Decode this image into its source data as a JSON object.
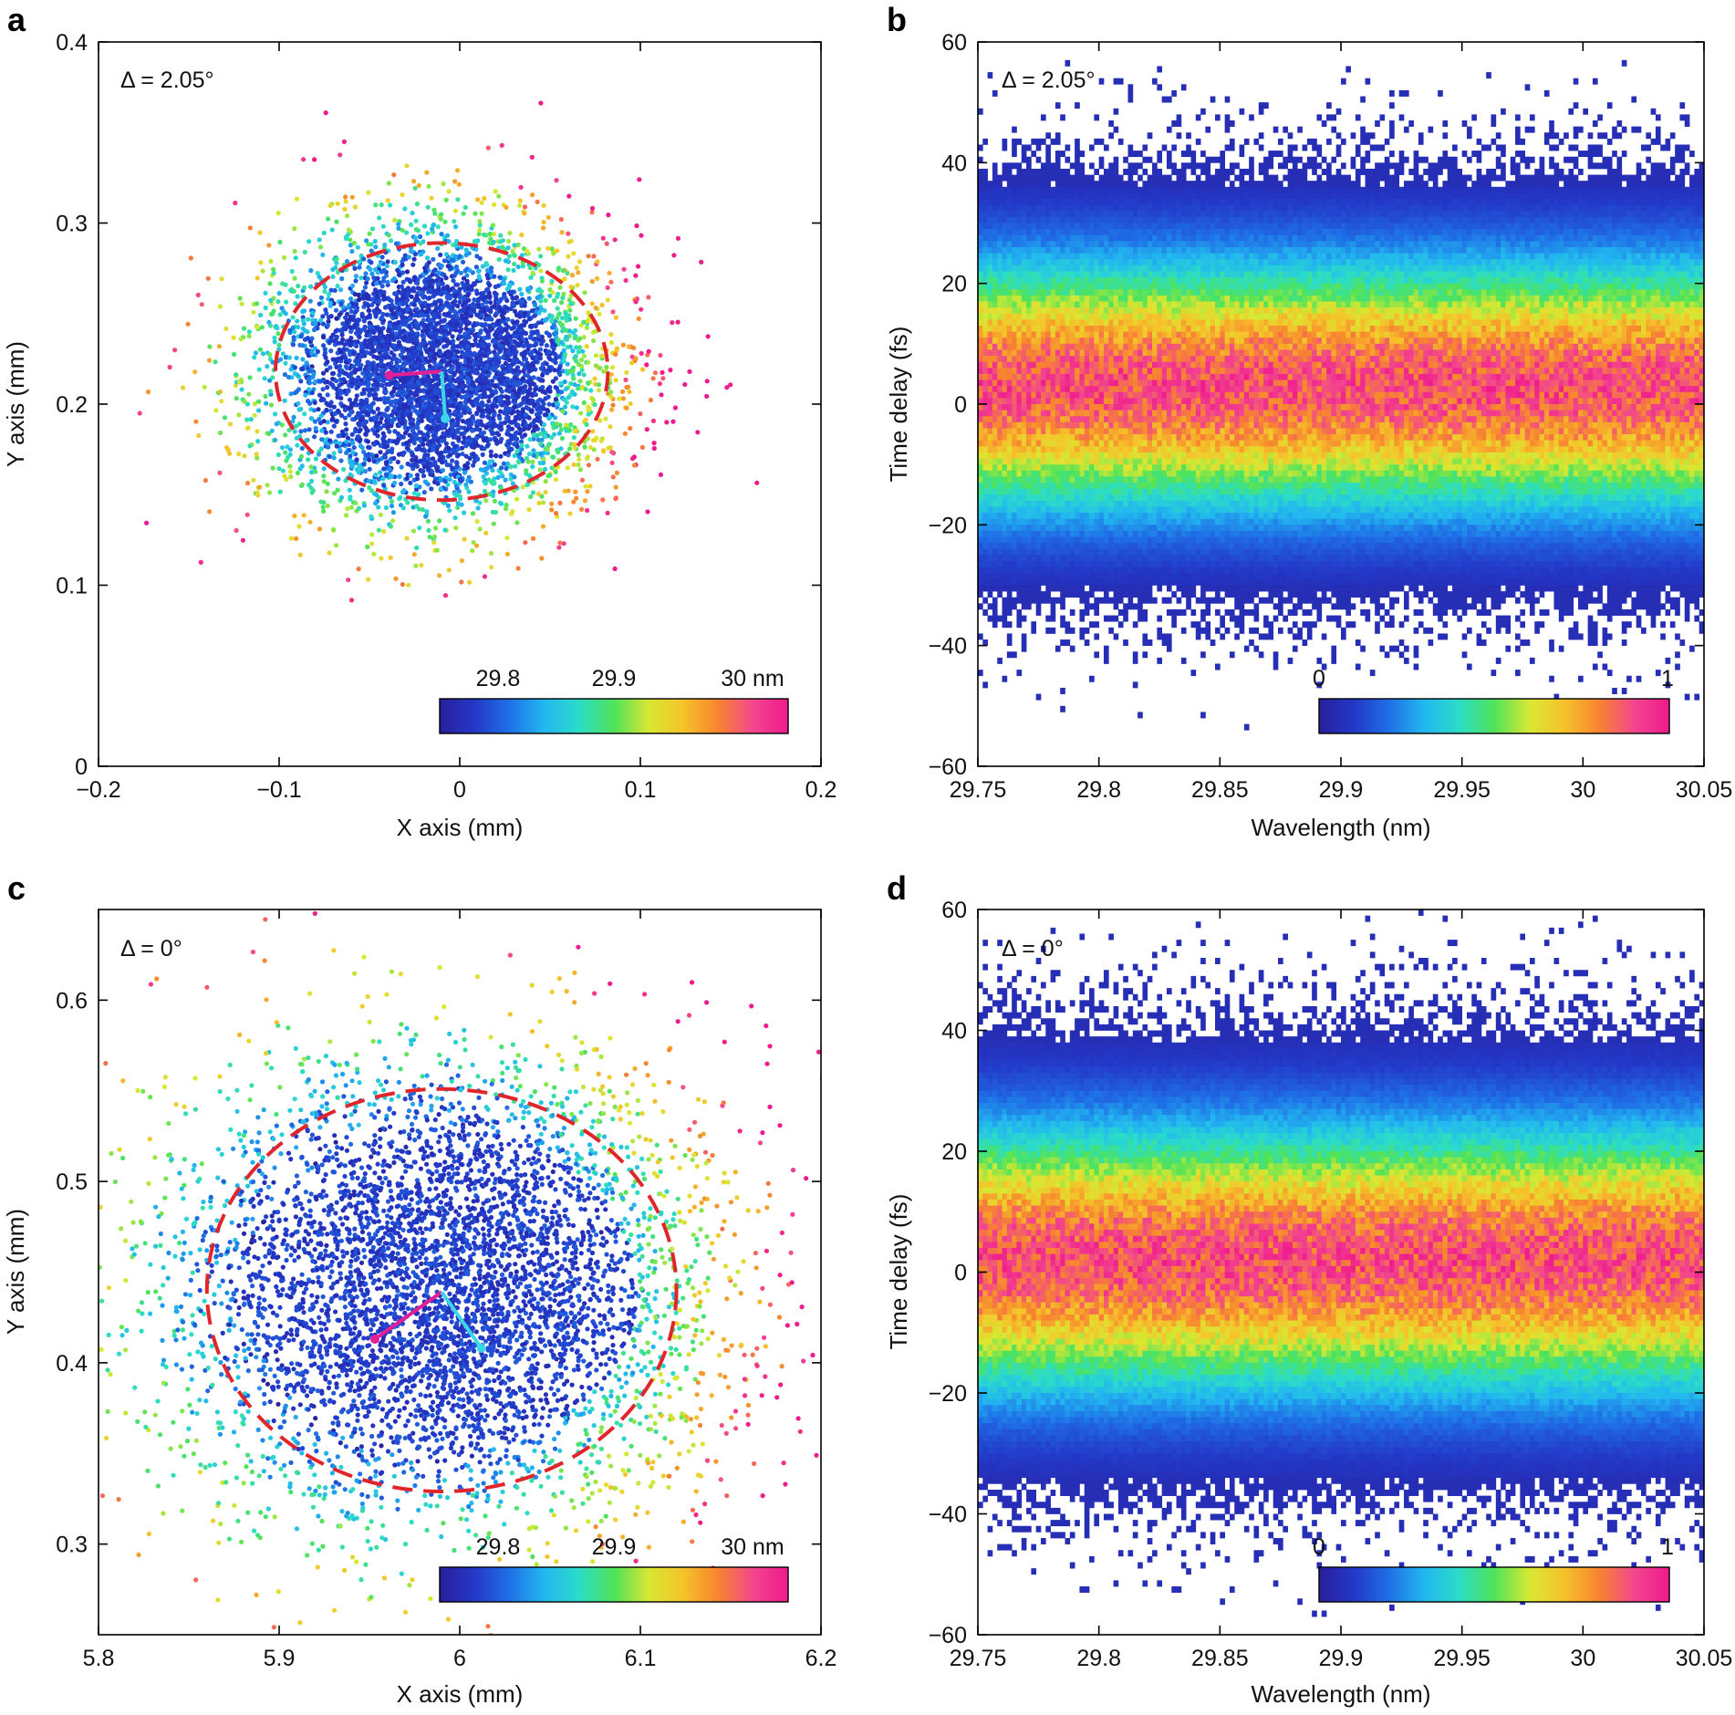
{
  "colormap": [
    "#2a1f9a",
    "#2338c8",
    "#1f6fe6",
    "#22b7f0",
    "#2bdcc8",
    "#4fe35a",
    "#d8e832",
    "#f6c22a",
    "#f7842f",
    "#f2468e",
    "#ef1a8c"
  ],
  "chart_data": [
    {
      "panel": "a",
      "type": "scatter",
      "annotation": "Δ = 2.05°",
      "xlabel": "X axis (mm)",
      "ylabel": "Y axis (mm)",
      "xlim": [
        -0.2,
        0.2
      ],
      "ylim": [
        0,
        0.4
      ],
      "xticks": [
        -0.2,
        -0.1,
        0,
        0.1,
        0.2
      ],
      "xtick_labels": [
        "−0.2",
        "−0.1",
        "0",
        "0.1",
        "0.2"
      ],
      "yticks": [
        0,
        0.1,
        0.2,
        0.3,
        0.4
      ],
      "ytick_labels": [
        "0",
        "0.1",
        "0.2",
        "0.3",
        "0.4"
      ],
      "spot_center": [
        -0.01,
        0.218
      ],
      "spot_radius": [
        0.11,
        0.09
      ],
      "dashed_ellipse": {
        "cx": -0.01,
        "cy": 0.218,
        "rx": 0.092,
        "ry": 0.071
      },
      "centroid_lines": [
        {
          "color": "#e61e96",
          "from": [
            -0.01,
            0.218
          ],
          "to": [
            -0.039,
            0.216
          ]
        },
        {
          "color": "#3ad7e8",
          "from": [
            -0.01,
            0.218
          ],
          "to": [
            -0.008,
            0.192
          ]
        }
      ],
      "colorbar": {
        "tick_labels": [
          "29.8",
          "29.9",
          "30 nm"
        ],
        "tick_values": [
          29.8,
          29.9,
          30.0
        ],
        "range": [
          29.75,
          30.05
        ]
      }
    },
    {
      "panel": "b",
      "type": "heatmap",
      "annotation": "Δ = 2.05°",
      "xlabel": "Wavelength (nm)",
      "ylabel": "Time delay (fs)",
      "xlim": [
        29.75,
        30.05
      ],
      "ylim": [
        -60,
        60
      ],
      "xticks": [
        29.75,
        29.8,
        29.85,
        29.9,
        29.95,
        30,
        30.05
      ],
      "xtick_labels": [
        "29.75",
        "29.8",
        "29.85",
        "29.9",
        "29.95",
        "30",
        "30.05"
      ],
      "yticks": [
        -60,
        -40,
        -20,
        0,
        20,
        40,
        60
      ],
      "ytick_labels": [
        "−60",
        "−40",
        "−20",
        "0",
        "20",
        "40",
        "60"
      ],
      "pulse_center_fs": 3,
      "pulse_sigma_fs": 14,
      "colorbar": {
        "tick_labels": [
          "0",
          "1"
        ],
        "tick_values": [
          0,
          1
        ],
        "range": [
          0,
          1
        ]
      }
    },
    {
      "panel": "c",
      "type": "scatter",
      "annotation": "Δ = 0°",
      "xlabel": "X axis (mm)",
      "ylabel": "Y axis (mm)",
      "xlim": [
        5.8,
        6.2
      ],
      "ylim": [
        0.25,
        0.65
      ],
      "xticks": [
        5.8,
        5.9,
        6.0,
        6.1,
        6.2
      ],
      "xtick_labels": [
        "5.8",
        "5.9",
        "6",
        "6.1",
        "6.2"
      ],
      "yticks": [
        0.3,
        0.4,
        0.5,
        0.6
      ],
      "ytick_labels": [
        "0.3",
        "0.4",
        "0.5",
        "0.6"
      ],
      "spot_center": [
        5.99,
        0.44
      ],
      "spot_radius": [
        0.18,
        0.15
      ],
      "dashed_ellipse": {
        "cx": 5.99,
        "cy": 0.44,
        "rx": 0.13,
        "ry": 0.111
      },
      "centroid_lines": [
        {
          "color": "#e61e96",
          "from": [
            5.99,
            0.439
          ],
          "to": [
            5.953,
            0.413
          ]
        },
        {
          "color": "#3ad7e8",
          "from": [
            5.99,
            0.439
          ],
          "to": [
            6.012,
            0.408
          ]
        }
      ],
      "colorbar": {
        "tick_labels": [
          "29.8",
          "29.9",
          "30 nm"
        ],
        "tick_values": [
          29.8,
          29.9,
          30.0
        ],
        "range": [
          29.75,
          30.05
        ]
      }
    },
    {
      "panel": "d",
      "type": "heatmap",
      "annotation": "Δ = 0°",
      "xlabel": "Wavelength (nm)",
      "ylabel": "Time delay (fs)",
      "xlim": [
        29.75,
        30.05
      ],
      "ylim": [
        -60,
        60
      ],
      "xticks": [
        29.75,
        29.8,
        29.85,
        29.9,
        29.95,
        30,
        30.05
      ],
      "xtick_labels": [
        "29.75",
        "29.8",
        "29.85",
        "29.9",
        "29.95",
        "30",
        "30.05"
      ],
      "yticks": [
        -60,
        -40,
        -20,
        0,
        20,
        40,
        60
      ],
      "ytick_labels": [
        "−60",
        "−40",
        "−20",
        "0",
        "20",
        "40",
        "60"
      ],
      "pulse_center_fs": 2,
      "pulse_sigma_fs": 15,
      "colorbar": {
        "tick_labels": [
          "0",
          "1"
        ],
        "tick_values": [
          0,
          1
        ],
        "range": [
          0,
          1
        ]
      }
    }
  ]
}
